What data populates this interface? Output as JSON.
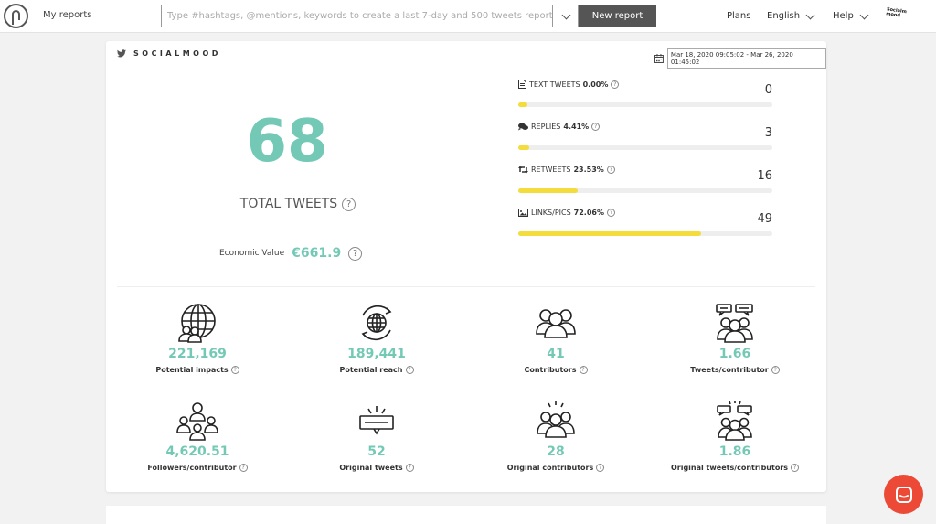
{
  "header": {
    "my_reports": "My reports",
    "search_placeholder": "Type #hashtags, @mentions, keywords to create a last 7-day and 500 tweets report",
    "new_report": "New report",
    "plans": "Plans",
    "language": "English",
    "help": "Help",
    "avatar_text": "Socialm mood"
  },
  "report": {
    "brand": "SOCIALMOOD",
    "date_range": "Mar 18, 2020 09:05:02 - Mar 26, 2020 01:45:02",
    "total_tweets": "68",
    "total_label": "TOTAL TWEETS",
    "economic_label": "Economic Value",
    "economic_value": "€661.9",
    "metrics": [
      {
        "label": "TEXT TWEETS",
        "pct": "0.00%",
        "value": "0",
        "fill": 0.03
      },
      {
        "label": "REPLIES",
        "pct": "4.41%",
        "value": "3",
        "fill": 0.0441
      },
      {
        "label": "RETWEETS",
        "pct": "23.53%",
        "value": "16",
        "fill": 0.2353
      },
      {
        "label": "LINKS/PICS",
        "pct": "72.06%",
        "value": "49",
        "fill": 0.7206
      }
    ],
    "stats": [
      {
        "value": "221,169",
        "label": "Potential impacts"
      },
      {
        "value": "189,441",
        "label": "Potential reach"
      },
      {
        "value": "41",
        "label": "Contributors"
      },
      {
        "value": "1.66",
        "label": "Tweets/contributor"
      },
      {
        "value": "4,620.51",
        "label": "Followers/contributor"
      },
      {
        "value": "52",
        "label": "Original tweets"
      },
      {
        "value": "28",
        "label": "Original contributors"
      },
      {
        "value": "1.86",
        "label": "Original tweets/contributors"
      }
    ]
  },
  "colors": {
    "accent": "#73c9b6",
    "bar": "#f4dc3c",
    "chat": "#ec4a37"
  }
}
